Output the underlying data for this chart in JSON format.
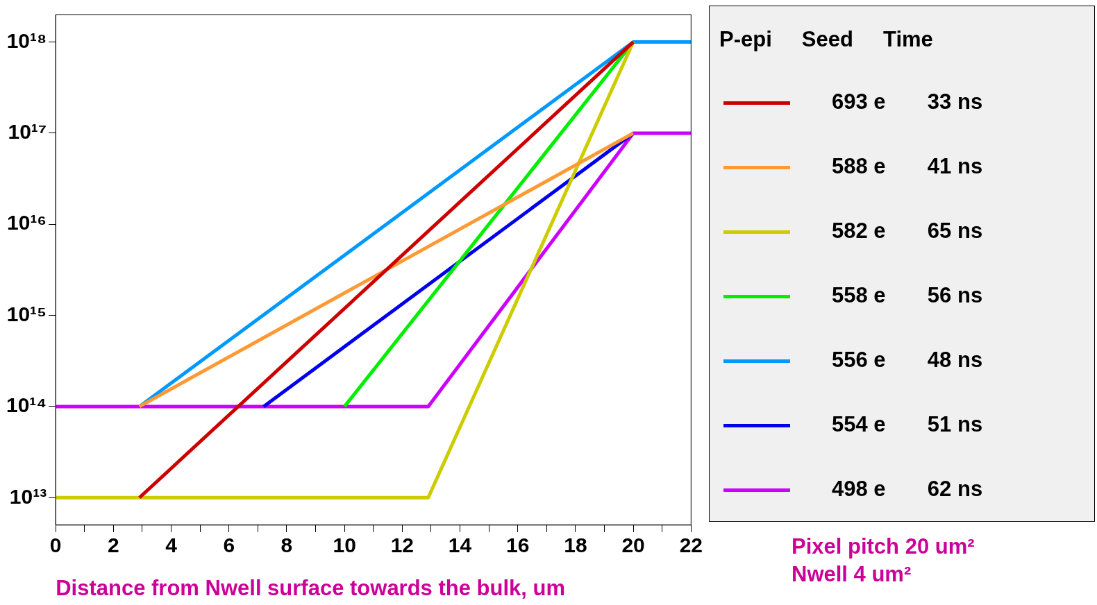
{
  "chart_data": {
    "type": "line",
    "xlabel": "Distance from Nwell surface towards the bulk, um",
    "legend_title": "P-epi     Seed     Time",
    "legend": "right",
    "log": "y",
    "grid": false,
    "marker": "none",
    "line_style": "solid",
    "xlim": [
      0,
      22
    ],
    "xticks": [
      0,
      {
        "value": 1,
        "label": null
      },
      2,
      {
        "value": 3,
        "label": null
      },
      4,
      {
        "value": 5,
        "label": null
      },
      6,
      {
        "value": 7,
        "label": null
      },
      8,
      {
        "value": 9,
        "label": null
      },
      10,
      {
        "value": 11,
        "label": null
      },
      12,
      {
        "value": 13,
        "label": null
      },
      14,
      {
        "value": 15,
        "label": null
      },
      16,
      {
        "value": 17,
        "label": null
      },
      18,
      {
        "value": 19,
        "label": null
      },
      20,
      {
        "value": 21,
        "label": null
      },
      22
    ],
    "ylim": [
      5000000000000.0,
      2e+18
    ],
    "yticks": [
      {
        "value": 10000000000000.0,
        "label": "10¹³"
      },
      {
        "value": 100000000000000.0,
        "label": "10¹⁴"
      },
      {
        "value": 1000000000000000.0,
        "label": "10¹⁵"
      },
      {
        "value": 1e+16,
        "label": "10¹⁶"
      },
      {
        "value": 1e+17,
        "label": "10¹⁷"
      },
      {
        "value": 1e+18,
        "label": "10¹⁸"
      }
    ],
    "series": [
      {
        "name": "693 e       33 ns",
        "color": "#cc0000",
        "x": [
          2.9,
          20
        ],
        "values": [
          10000000000000.0,
          1e+18
        ]
      },
      {
        "name": "588 e       41 ns",
        "color": "#ff9933",
        "x": [
          2.9,
          20
        ],
        "values": [
          100000000000000.0,
          1e+17
        ]
      },
      {
        "name": "582 e       65 ns",
        "color": "#cccc00",
        "x": [
          0,
          12.9,
          20
        ],
        "values": [
          10000000000000.0,
          10000000000000.0,
          1e+18
        ]
      },
      {
        "name": "558 e       56 ns",
        "color": "#00ee00",
        "x": [
          10,
          20
        ],
        "values": [
          100000000000000.0,
          1e+18
        ]
      },
      {
        "name": "556 e       48 ns",
        "color": "#0099ff",
        "x": [
          2.9,
          20,
          22
        ],
        "values": [
          100000000000000.0,
          1e+18,
          1e+18
        ]
      },
      {
        "name": "554 e       51 ns",
        "color": "#0000ee",
        "x": [
          7.2,
          20
        ],
        "values": [
          100000000000000.0,
          1e+17
        ]
      },
      {
        "name": "498 e       62 ns",
        "color": "#cc00ff",
        "x": [
          0,
          12.9,
          20,
          22
        ],
        "values": [
          100000000000000.0,
          100000000000000.0,
          1e+17,
          1e+17
        ]
      }
    ],
    "annotations": [
      "Pixel pitch 20 um²",
      "Nwell 4 um²"
    ]
  }
}
